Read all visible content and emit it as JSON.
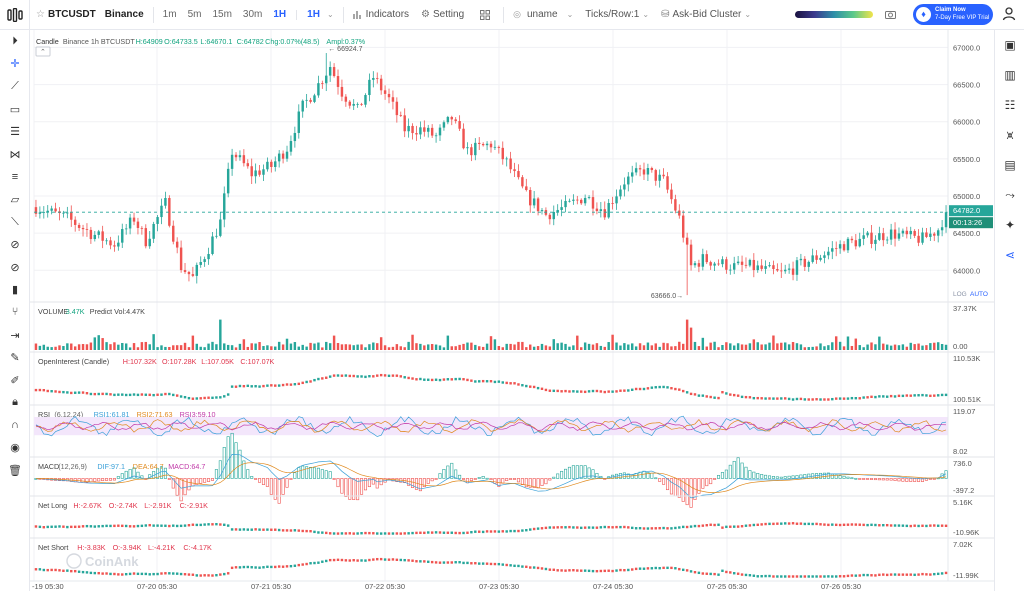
{
  "toolbar": {
    "symbol": "BTCUSDT",
    "exchange": "Binance",
    "timeframes": [
      "1m",
      "5m",
      "15m",
      "30m",
      "1H",
      "1H"
    ],
    "indicators_label": "Indicators",
    "setting_label": "Setting",
    "uname_label": "uname",
    "ticks_label": "Ticks/Row:1",
    "cluster_label": "Ask-Bid Cluster",
    "claim_line1": "Claim Now",
    "claim_line2": "7-Day Free VIP Trial"
  },
  "colors": {
    "up": "#26a69a",
    "down": "#ef5350",
    "accent": "#2962ff",
    "green": "#11a37f",
    "red": "#e0344b"
  },
  "chart_data": {
    "type": "candlestick",
    "legend": {
      "name": "Candle",
      "source": "Binance 1h BTCUSDT",
      "H_label": "H:",
      "H": "64909",
      "O_label": "O:",
      "O": "64733.5",
      "L_label": "L:",
      "L": "64670.1",
      "C_label": "C:",
      "C": "64782",
      "chg": "Chg:0.07%(48.5)",
      "ampl": "Ampl:0.37%"
    },
    "x_ticks": [
      "-19 05:30",
      "07-20 05:30",
      "07-21 05:30",
      "07-22 05:30",
      "07-23 05:30",
      "07-24 05:30",
      "07-25 05:30",
      "07-26 05:30"
    ],
    "y_ticks": [
      "67000.0",
      "66500.0",
      "66000.0",
      "65500.0",
      "65000.0",
      "64500.0",
      "64000.0"
    ],
    "ylim": [
      63600,
      67100
    ],
    "last_price": "64782.0",
    "countdown": "00:13:26",
    "high_marker": "66924.7",
    "low_marker": "63666.0",
    "scale_log": "LOG",
    "scale_auto": "AUTO",
    "anchors": [
      [
        0,
        64850
      ],
      [
        8,
        64700
      ],
      [
        14,
        64500
      ],
      [
        20,
        64350
      ],
      [
        25,
        64700
      ],
      [
        28,
        64400
      ],
      [
        33,
        64900
      ],
      [
        37,
        64050
      ],
      [
        40,
        63900
      ],
      [
        44,
        64300
      ],
      [
        47,
        64650
      ],
      [
        50,
        65600
      ],
      [
        55,
        65300
      ],
      [
        60,
        65400
      ],
      [
        64,
        65650
      ],
      [
        68,
        66200
      ],
      [
        72,
        66500
      ],
      [
        75,
        66750
      ],
      [
        78,
        66400
      ],
      [
        82,
        66150
      ],
      [
        86,
        66600
      ],
      [
        90,
        66300
      ],
      [
        94,
        65900
      ],
      [
        98,
        65900
      ],
      [
        102,
        65800
      ],
      [
        106,
        66050
      ],
      [
        110,
        65600
      ],
      [
        116,
        65700
      ],
      [
        120,
        65450
      ],
      [
        125,
        65000
      ],
      [
        130,
        64750
      ],
      [
        135,
        64850
      ],
      [
        140,
        65000
      ],
      [
        145,
        64800
      ],
      [
        150,
        65200
      ],
      [
        155,
        65350
      ],
      [
        160,
        65200
      ],
      [
        164,
        64700
      ],
      [
        167,
        64050
      ],
      [
        170,
        64150
      ],
      [
        174,
        64100
      ],
      [
        178,
        64050
      ],
      [
        182,
        64050
      ],
      [
        186,
        64000
      ],
      [
        190,
        63950
      ],
      [
        194,
        64050
      ],
      [
        198,
        64150
      ],
      [
        202,
        64250
      ],
      [
        206,
        64350
      ],
      [
        210,
        64400
      ],
      [
        214,
        64450
      ],
      [
        218,
        64500
      ],
      [
        222,
        64450
      ],
      [
        226,
        64420
      ],
      [
        230,
        64550
      ],
      [
        232,
        64782
      ]
    ],
    "panes": [
      {
        "name": "volume",
        "labels": [
          "VOLUME",
          "3.47K",
          "Predict Vol:4.47K"
        ],
        "ticks": [
          "37.37K",
          "0.00"
        ]
      },
      {
        "name": "open-interest",
        "labels": [
          "OpenInterest (Candle)",
          "H:107.32K",
          "O:107.28K",
          "L:107.05K",
          "C:107.07K"
        ],
        "ticks": [
          "110.53K",
          "100.51K"
        ]
      },
      {
        "name": "rsi",
        "labels": [
          "RSI",
          "(6,12,24)",
          "RSI1:61.81",
          "RSI2:71.63",
          "RSI3:59.10"
        ],
        "ticks": [
          "119.07",
          "8.02"
        ]
      },
      {
        "name": "macd",
        "labels": [
          "MACD",
          "(12,26,9)",
          "DIF:97.1",
          "DEA:64.7",
          "MACD:64.7"
        ],
        "ticks": [
          "736.0",
          "-397.2"
        ]
      },
      {
        "name": "net-long",
        "labels": [
          "Net Long",
          "H:-2.67K",
          "O:-2.74K",
          "L:-2.91K",
          "C:-2.91K"
        ],
        "ticks": [
          "5.16K",
          "-10.96K"
        ]
      },
      {
        "name": "net-short",
        "labels": [
          "Net Short",
          "H:-3.83K",
          "O:-3.94K",
          "L:-4.21K",
          "C:-4.17K"
        ],
        "ticks": [
          "7.02K",
          "-11.99K"
        ]
      }
    ],
    "watermark": "CoinAnk"
  }
}
